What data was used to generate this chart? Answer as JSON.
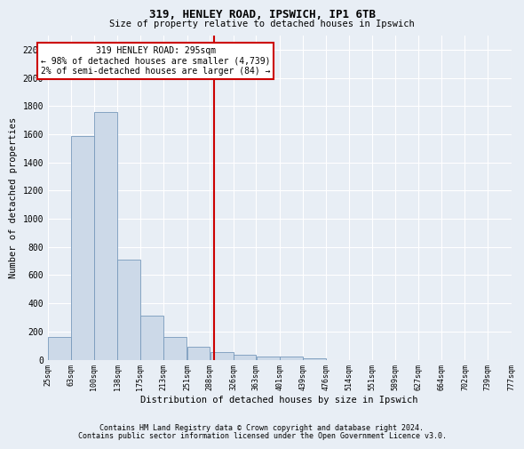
{
  "title1": "319, HENLEY ROAD, IPSWICH, IP1 6TB",
  "title2": "Size of property relative to detached houses in Ipswich",
  "xlabel": "Distribution of detached houses by size in Ipswich",
  "ylabel": "Number of detached properties",
  "footnote1": "Contains HM Land Registry data © Crown copyright and database right 2024.",
  "footnote2": "Contains public sector information licensed under the Open Government Licence v3.0.",
  "annotation_line1": "319 HENLEY ROAD: 295sqm",
  "annotation_line2": "← 98% of detached houses are smaller (4,739)",
  "annotation_line3": "2% of semi-detached houses are larger (84) →",
  "bar_left_edges": [
    25,
    63,
    100,
    138,
    175,
    213,
    251,
    288,
    326,
    363,
    401,
    439,
    476,
    514,
    551,
    589,
    627,
    664,
    702,
    739
  ],
  "bar_widths": [
    38,
    37,
    38,
    37,
    38,
    38,
    37,
    38,
    37,
    38,
    38,
    37,
    38,
    37,
    38,
    38,
    37,
    38,
    37,
    38
  ],
  "bar_heights": [
    160,
    1590,
    1760,
    710,
    315,
    160,
    90,
    55,
    35,
    25,
    20,
    10,
    0,
    0,
    0,
    0,
    0,
    0,
    0,
    0
  ],
  "tick_labels": [
    "25sqm",
    "63sqm",
    "100sqm",
    "138sqm",
    "175sqm",
    "213sqm",
    "251sqm",
    "288sqm",
    "326sqm",
    "363sqm",
    "401sqm",
    "439sqm",
    "476sqm",
    "514sqm",
    "551sqm",
    "589sqm",
    "627sqm",
    "664sqm",
    "702sqm",
    "739sqm",
    "777sqm"
  ],
  "tick_positions": [
    25,
    63,
    100,
    138,
    175,
    213,
    251,
    288,
    326,
    363,
    401,
    439,
    476,
    514,
    551,
    589,
    627,
    664,
    702,
    739,
    777
  ],
  "property_size": 295,
  "bar_color": "#ccd9e8",
  "bar_edge_color": "#7799bb",
  "vline_color": "#cc0000",
  "annotation_box_color": "#cc0000",
  "bg_color": "#e8eef5",
  "grid_color": "#ffffff",
  "yticks": [
    0,
    200,
    400,
    600,
    800,
    1000,
    1200,
    1400,
    1600,
    1800,
    2000,
    2200
  ],
  "ylim": [
    0,
    2300
  ],
  "xlim": [
    25,
    777
  ]
}
